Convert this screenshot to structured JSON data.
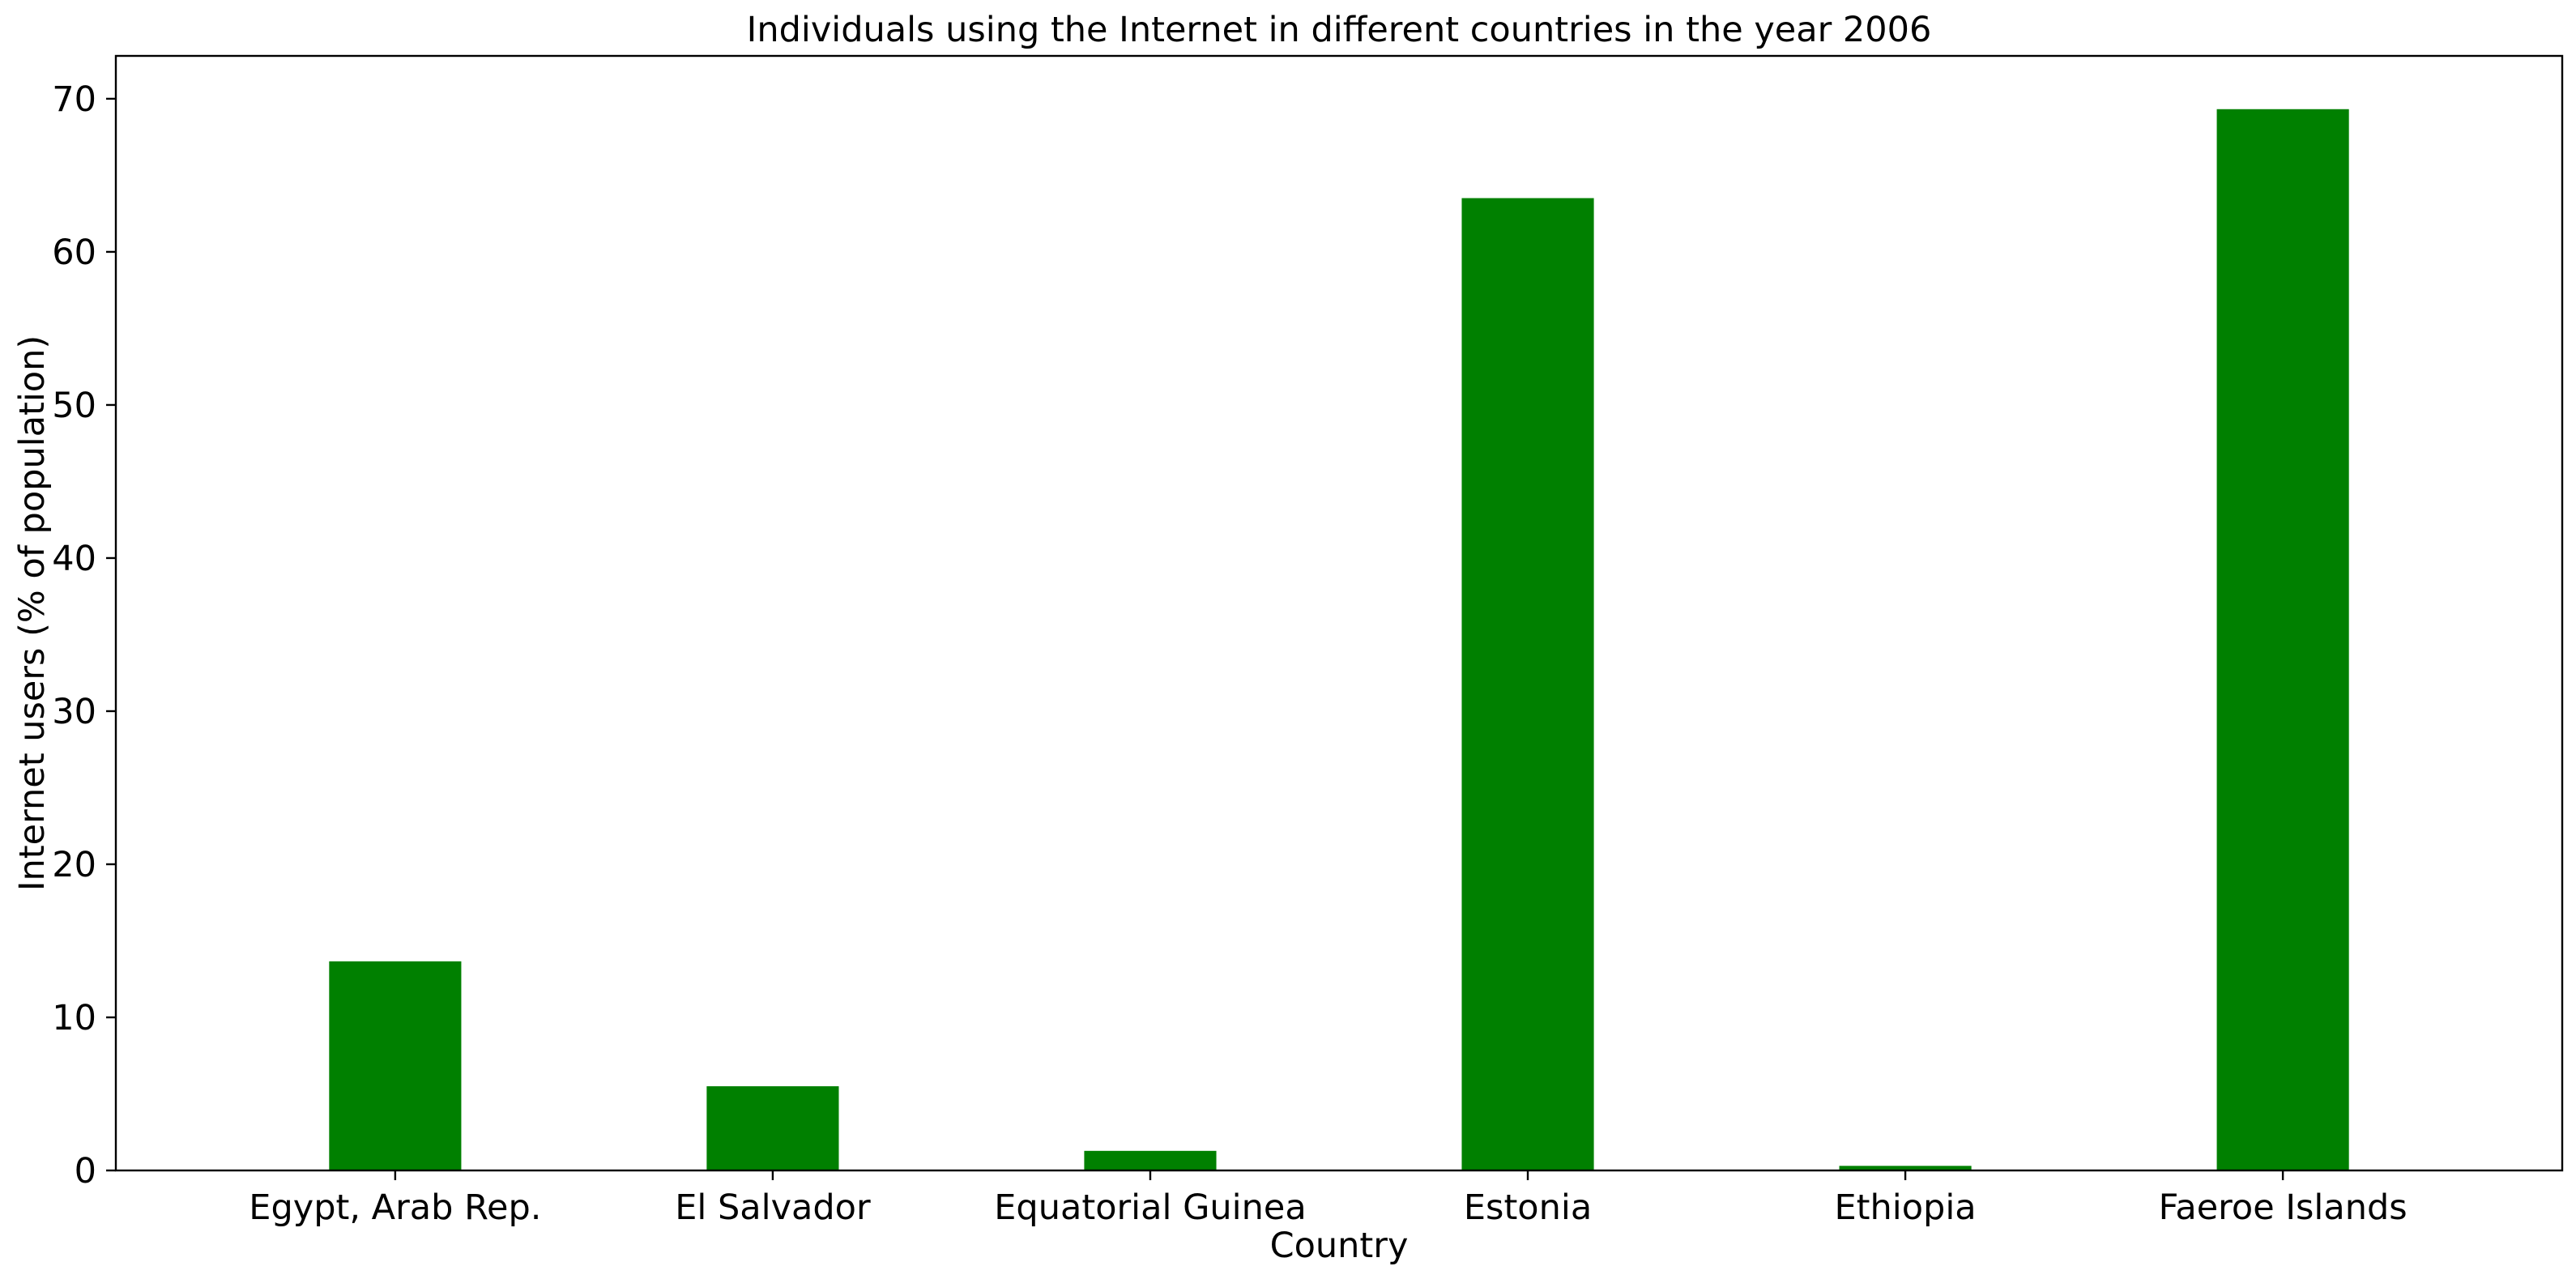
{
  "chart_data": {
    "type": "bar",
    "title": "Individuals using the Internet in different countries in the year 2006",
    "xlabel": "Country",
    "ylabel": "Internet users (% of population)",
    "categories": [
      "Egypt, Arab Rep.",
      "El Salvador",
      "Equatorial Guinea",
      "Estonia",
      "Ethiopia",
      "Faeroe Islands"
    ],
    "values": [
      13.66,
      5.5,
      1.28,
      63.51,
      0.3,
      69.32
    ],
    "ylim": [
      0,
      72.8
    ],
    "yticks": [
      0,
      10,
      20,
      30,
      40,
      50,
      60,
      70
    ],
    "bar_color": "#008000",
    "grid": false,
    "legend": "none"
  }
}
